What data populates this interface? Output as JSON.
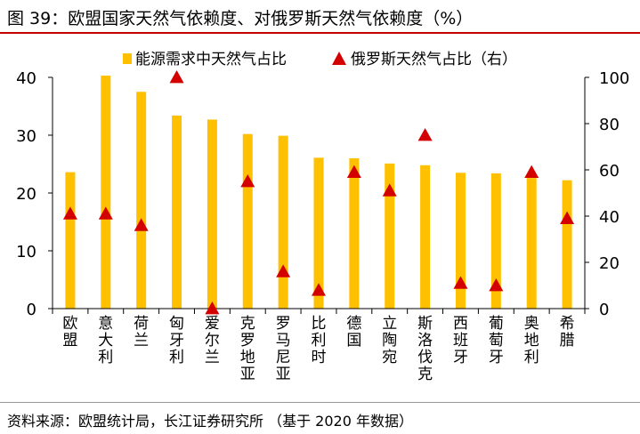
{
  "figure": {
    "title": "图 39：欧盟国家天然气依赖度、对俄罗斯天然气依赖度（%）",
    "source": "资料来源：欧盟统计局，长江证券研究所 （基于 2020 年数据）"
  },
  "chart_data": {
    "type": "bar",
    "categories": [
      "欧盟",
      "意大利",
      "荷兰",
      "匈牙利",
      "爱尔兰",
      "克罗地亚",
      "罗马尼亚",
      "比利时",
      "德国",
      "立陶宛",
      "斯洛伐克",
      "西班牙",
      "葡萄牙",
      "奥地利",
      "希腊"
    ],
    "series": [
      {
        "name": "能源需求中天然气占比",
        "axis": "left",
        "mark": "bar",
        "color": "#FFC000",
        "values": [
          23.6,
          40.3,
          37.5,
          33.4,
          32.7,
          30.2,
          29.9,
          26.1,
          26.0,
          25.1,
          24.8,
          23.5,
          23.4,
          22.6,
          22.2
        ]
      },
      {
        "name": "俄罗斯天然气占比（右）",
        "axis": "right",
        "mark": "triangle",
        "color": "#D40000",
        "values": [
          41,
          41,
          36,
          100,
          0,
          55,
          16,
          8,
          59,
          51,
          75,
          11,
          10,
          59,
          39
        ]
      }
    ],
    "y_left": {
      "ylim": [
        0,
        40
      ],
      "ticks": [
        0,
        10,
        20,
        30,
        40
      ]
    },
    "y_right": {
      "ylim": [
        0,
        100
      ],
      "ticks": [
        0,
        20,
        40,
        60,
        80,
        100
      ]
    },
    "legend_position": "top",
    "grid": false
  }
}
